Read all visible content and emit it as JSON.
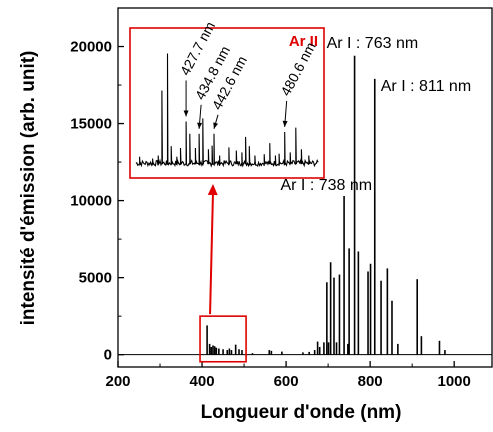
{
  "chart_data": {
    "type": "line",
    "xlabel": "Longueur d'onde (nm)",
    "ylabel": "intensité d'émission (arb. unit)",
    "xlim": [
      200,
      1090
    ],
    "ylim": [
      -800,
      22500
    ],
    "xticks": [
      200,
      400,
      600,
      800,
      1000
    ],
    "yticks": [
      0,
      5000,
      10000,
      15000,
      20000
    ],
    "colors": {
      "trace": "#000000",
      "highlight": "#e00000",
      "inset_title": "#e00000"
    },
    "lines": [
      [
        412,
        1900
      ],
      [
        418,
        700
      ],
      [
        422,
        500
      ],
      [
        426,
        600
      ],
      [
        430,
        550
      ],
      [
        434,
        450
      ],
      [
        440,
        400
      ],
      [
        450,
        350
      ],
      [
        460,
        300
      ],
      [
        465,
        400
      ],
      [
        470,
        300
      ],
      [
        480,
        650
      ],
      [
        488,
        350
      ],
      [
        495,
        300
      ],
      [
        520,
        100
      ],
      [
        560,
        300
      ],
      [
        565,
        250
      ],
      [
        590,
        200
      ],
      [
        640,
        150
      ],
      [
        655,
        180
      ],
      [
        668,
        300
      ],
      [
        675,
        850
      ],
      [
        680,
        500
      ],
      [
        690,
        800
      ],
      [
        697,
        4700
      ],
      [
        701,
        800
      ],
      [
        706,
        6000
      ],
      [
        714,
        5000
      ],
      [
        720,
        800
      ],
      [
        727,
        5200
      ],
      [
        738,
        10300
      ],
      [
        747,
        700
      ],
      [
        750,
        6900
      ],
      [
        763,
        19400
      ],
      [
        772,
        6700
      ],
      [
        795,
        5400
      ],
      [
        801,
        5900
      ],
      [
        811,
        17900
      ],
      [
        826,
        4800
      ],
      [
        841,
        5600
      ],
      [
        852,
        3500
      ],
      [
        866,
        700
      ],
      [
        912,
        4900
      ],
      [
        922,
        1200
      ],
      [
        965,
        900
      ],
      [
        978,
        300
      ]
    ],
    "annotations": [
      {
        "text": "Ar I : 763 nm",
        "x": 763,
        "y": 19400
      },
      {
        "text": "Ar I : 811 nm",
        "x": 811,
        "y": 17900
      },
      {
        "text": "Ar I : 738 nm",
        "x": 738,
        "y": 10300
      }
    ],
    "highlight_region": {
      "x": [
        400,
        500
      ],
      "y": [
        -200,
        2500
      ]
    },
    "inset": {
      "title": "Ar II",
      "xlim": [
        400,
        500
      ],
      "ylim": [
        0,
        2200
      ],
      "lines": [
        [
          403,
          280
        ],
        [
          410,
          250
        ],
        [
          413,
          300
        ],
        [
          415,
          1350
        ],
        [
          418,
          1950
        ],
        [
          420,
          450
        ],
        [
          423,
          280
        ],
        [
          425,
          420
        ],
        [
          428,
          850
        ],
        [
          430,
          650
        ],
        [
          433,
          420
        ],
        [
          435,
          650
        ],
        [
          437,
          900
        ],
        [
          440,
          400
        ],
        [
          442,
          460
        ],
        [
          443,
          650
        ],
        [
          446,
          300
        ],
        [
          451,
          430
        ],
        [
          455,
          380
        ],
        [
          458,
          350
        ],
        [
          460,
          600
        ],
        [
          462,
          450
        ],
        [
          465,
          300
        ],
        [
          470,
          320
        ],
        [
          473,
          500
        ],
        [
          476,
          300
        ],
        [
          478,
          330
        ],
        [
          481,
          680
        ],
        [
          484,
          350
        ],
        [
          487,
          750
        ],
        [
          490,
          400
        ],
        [
          494,
          300
        ]
      ],
      "annotations": [
        {
          "text": "427.7 nm",
          "x": 427.7
        },
        {
          "text": "434.8 nm",
          "x": 434.8
        },
        {
          "text": "442.6 nm",
          "x": 442.6
        },
        {
          "text": "480.6 nm",
          "x": 480.6
        }
      ]
    }
  }
}
